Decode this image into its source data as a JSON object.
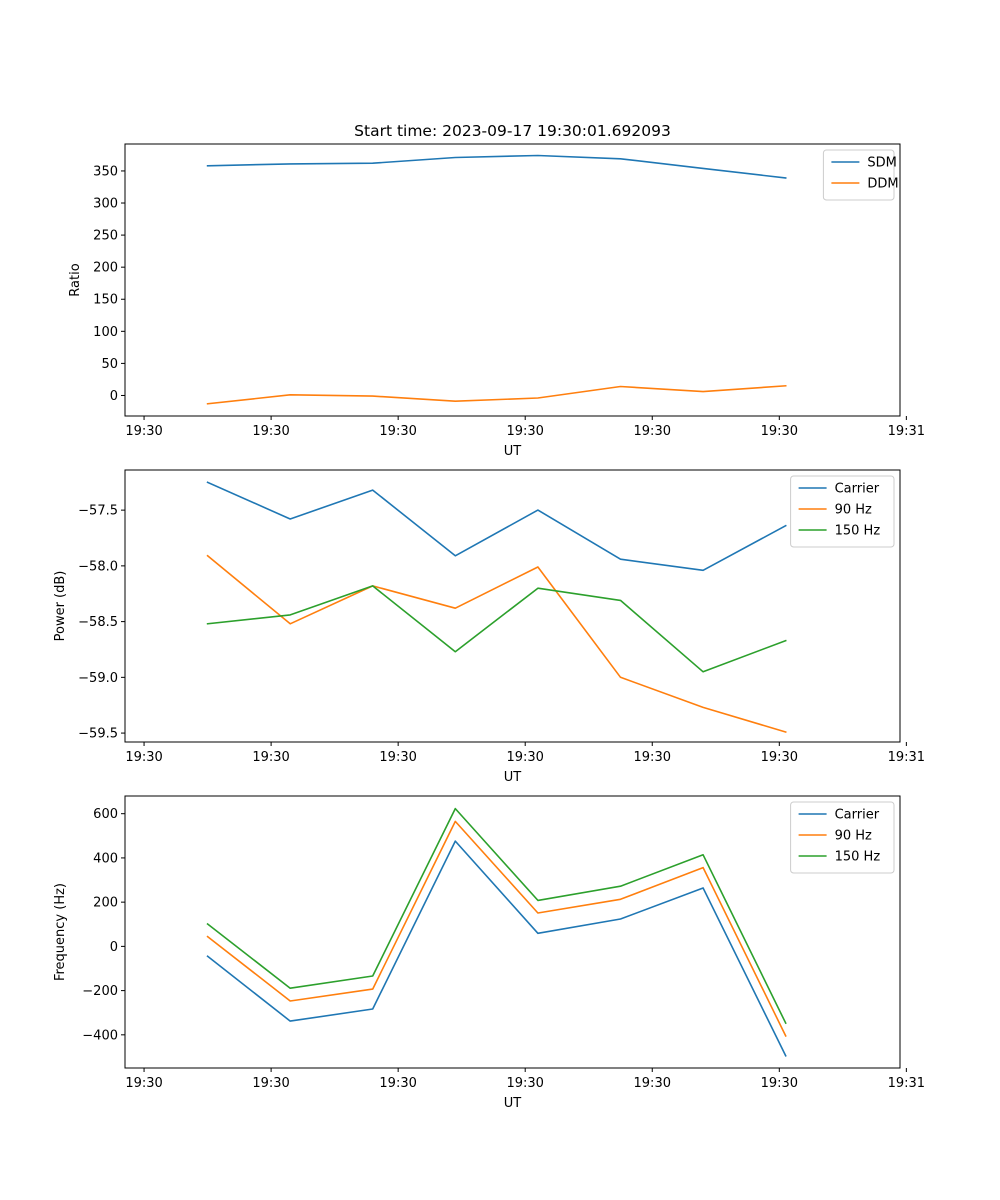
{
  "title": "Start time: 2023-09-17 19:30:01.692093",
  "chart_data": [
    {
      "type": "line",
      "title": "Start time: 2023-09-17 19:30:01.692093",
      "xlabel": "UT",
      "ylabel": "Ratio",
      "x_tick_labels": [
        "19:30",
        "19:30",
        "19:30",
        "19:30",
        "19:30",
        "19:30",
        "19:31"
      ],
      "y_ticks": [
        0,
        50,
        100,
        150,
        200,
        250,
        300,
        350
      ],
      "ylim": [
        -32,
        392
      ],
      "x": [
        0.5,
        1.15,
        1.8,
        2.45,
        3.1,
        3.75,
        4.4,
        5.05
      ],
      "xlim": [
        -0.15,
        5.95
      ],
      "series": [
        {
          "name": "SDM",
          "color": "#1f77b4",
          "values": [
            358,
            361,
            362,
            371,
            374,
            369,
            354,
            339
          ]
        },
        {
          "name": "DDM",
          "color": "#ff7f0e",
          "values": [
            -13,
            1,
            -1,
            -9,
            -4,
            14,
            6,
            15
          ]
        }
      ],
      "legend": "top-right"
    },
    {
      "type": "line",
      "title": "",
      "xlabel": "UT",
      "ylabel": "Power (dB)",
      "x_tick_labels": [
        "19:30",
        "19:30",
        "19:30",
        "19:30",
        "19:30",
        "19:30",
        "19:31"
      ],
      "y_ticks": [
        -59.5,
        -59.0,
        -58.5,
        -58.0,
        -57.5
      ],
      "y_tick_labels": [
        "−59.5",
        "−59.0",
        "−58.5",
        "−58.0",
        "−57.5"
      ],
      "ylim": [
        -59.58,
        -57.14
      ],
      "x": [
        0.5,
        1.15,
        1.8,
        2.45,
        3.1,
        3.75,
        4.4,
        5.05
      ],
      "xlim": [
        -0.15,
        5.95
      ],
      "series": [
        {
          "name": "Carrier",
          "color": "#1f77b4",
          "values": [
            -57.25,
            -57.58,
            -57.32,
            -57.91,
            -57.5,
            -57.94,
            -58.04,
            -57.64
          ]
        },
        {
          "name": "90 Hz",
          "color": "#ff7f0e",
          "values": [
            -57.91,
            -58.52,
            -58.18,
            -58.38,
            -58.01,
            -59.0,
            -59.27,
            -59.49
          ]
        },
        {
          "name": "150 Hz",
          "color": "#2ca02c",
          "values": [
            -58.52,
            -58.44,
            -58.18,
            -58.77,
            -58.2,
            -58.31,
            -58.95,
            -58.67
          ]
        }
      ],
      "legend": "top-right"
    },
    {
      "type": "line",
      "title": "",
      "xlabel": "UT",
      "ylabel": "Frequency (Hz)",
      "x_tick_labels": [
        "19:30",
        "19:30",
        "19:30",
        "19:30",
        "19:30",
        "19:30",
        "19:31"
      ],
      "y_ticks": [
        -400,
        -200,
        0,
        200,
        400,
        600
      ],
      "y_tick_labels": [
        "−400",
        "−200",
        "0",
        "200",
        "400",
        "600"
      ],
      "ylim": [
        -550,
        680
      ],
      "x": [
        0.5,
        1.15,
        1.8,
        2.45,
        3.1,
        3.75,
        4.4,
        5.05
      ],
      "xlim": [
        -0.15,
        5.95
      ],
      "series": [
        {
          "name": "Carrier",
          "color": "#1f77b4",
          "values": [
            -45,
            -338,
            -283,
            476,
            59,
            124,
            264,
            -495
          ]
        },
        {
          "name": "90 Hz",
          "color": "#ff7f0e",
          "values": [
            44,
            -247,
            -193,
            565,
            151,
            213,
            356,
            -405
          ]
        },
        {
          "name": "150 Hz",
          "color": "#2ca02c",
          "values": [
            101,
            -189,
            -134,
            623,
            208,
            272,
            414,
            -347
          ]
        }
      ],
      "legend": "top-right"
    }
  ]
}
